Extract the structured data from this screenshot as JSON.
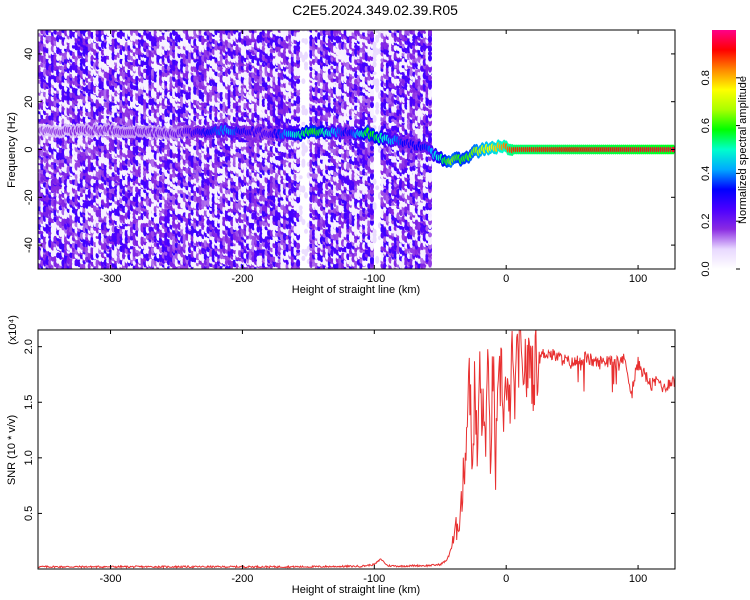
{
  "figure_title": "C2E5.2024.349.02.39.R05",
  "chart_data": [
    {
      "type": "heatmap",
      "name": "spectrogram",
      "title": "C2E5.2024.349.02.39.R05",
      "xlabel": "Height of straight line (km)",
      "ylabel": "Frequency (Hz)",
      "xlim": [
        -355,
        128
      ],
      "ylim": [
        -50,
        50
      ],
      "x_ticks": [
        -300,
        -200,
        -100,
        0,
        100
      ],
      "y_ticks": [
        -40,
        -20,
        0,
        20,
        40
      ],
      "colorbar": {
        "label": "Normalized spectral amplitude",
        "range": [
          0,
          1
        ],
        "ticks": [
          "0.0",
          "0.2",
          "0.4",
          "0.6",
          "0.8"
        ],
        "colors": [
          "#ffffff",
          "#e8d8ff",
          "#8a2be2",
          "#4b00ff",
          "#0000ff",
          "#00aaff",
          "#00ffcc",
          "#00ff00",
          "#aaff00",
          "#ffff00",
          "#ff8800",
          "#ff0000",
          "#ff0088"
        ]
      },
      "noise_region_x": [
        -355,
        -58
      ],
      "gaps_x": [
        [
          -158,
          -150
        ],
        [
          -102,
          -96
        ]
      ],
      "carrier_track": [
        {
          "x": -355,
          "y": 8,
          "a": 0.15
        },
        {
          "x": -300,
          "y": 8,
          "a": 0.18
        },
        {
          "x": -250,
          "y": 7,
          "a": 0.2
        },
        {
          "x": -210,
          "y": 8,
          "a": 0.42
        },
        {
          "x": -200,
          "y": 8,
          "a": 0.3
        },
        {
          "x": -180,
          "y": 7,
          "a": 0.25
        },
        {
          "x": -160,
          "y": 6,
          "a": 0.5
        },
        {
          "x": -153,
          "y": 7,
          "a": 0.55
        },
        {
          "x": -145,
          "y": 7,
          "a": 0.6
        },
        {
          "x": -120,
          "y": 7,
          "a": 0.3
        },
        {
          "x": -105,
          "y": 7,
          "a": 0.6
        },
        {
          "x": -98,
          "y": 5,
          "a": 0.55
        },
        {
          "x": -75,
          "y": 3,
          "a": 0.3
        },
        {
          "x": -60,
          "y": 0,
          "a": 0.35
        },
        {
          "x": -55,
          "y": -2,
          "a": 0.45
        },
        {
          "x": -48,
          "y": -4,
          "a": 0.55
        },
        {
          "x": -42,
          "y": -5,
          "a": 0.65
        },
        {
          "x": -36,
          "y": -4,
          "a": 0.6
        },
        {
          "x": -30,
          "y": -3,
          "a": 0.6
        },
        {
          "x": -24,
          "y": -1,
          "a": 0.65
        },
        {
          "x": -18,
          "y": 0,
          "a": 0.7
        },
        {
          "x": -12,
          "y": 1,
          "a": 0.75
        },
        {
          "x": -6,
          "y": 1,
          "a": 0.8
        },
        {
          "x": 0,
          "y": 1,
          "a": 0.85
        },
        {
          "x": 6,
          "y": 0,
          "a": 0.9
        },
        {
          "x": 128,
          "y": 0,
          "a": 0.95
        }
      ]
    },
    {
      "type": "line",
      "name": "snr",
      "xlabel": "Height of straight line (km)",
      "ylabel": "SNR (10 * v/v)",
      "y_multiplier": "(x10⁴)",
      "xlim": [
        -355,
        128
      ],
      "ylim": [
        0,
        2.15
      ],
      "x_ticks": [
        -300,
        -200,
        -100,
        0,
        100
      ],
      "y_ticks": [
        0.5,
        1.0,
        1.5,
        2.0
      ],
      "color": "#e83030",
      "series": [
        {
          "x": [
            -355,
            -300,
            -250,
            -200,
            -150,
            -110,
            -100,
            -95,
            -90,
            -80,
            -70,
            -60,
            -50,
            -45,
            -40,
            -36,
            -33,
            -30,
            -28,
            -26,
            -24,
            -22,
            -20,
            -18,
            -16,
            -14,
            -12,
            -10,
            -8,
            -6,
            -4,
            -2,
            0,
            2,
            4,
            6,
            8,
            10,
            12,
            14,
            16,
            18,
            20,
            25,
            30,
            40,
            50,
            60,
            70,
            80,
            90,
            95,
            100,
            105,
            110,
            115,
            120,
            125,
            128
          ],
          "y": [
            0.02,
            0.02,
            0.02,
            0.02,
            0.02,
            0.025,
            0.04,
            0.09,
            0.03,
            0.025,
            0.03,
            0.03,
            0.04,
            0.08,
            0.25,
            0.45,
            0.7,
            1.25,
            1.9,
            0.9,
            1.6,
            1.0,
            1.75,
            1.35,
            1.2,
            1.7,
            1.05,
            1.8,
            0.95,
            1.4,
            1.85,
            1.5,
            1.6,
            1.3,
            1.9,
            1.55,
            1.75,
            2.05,
            1.65,
            1.95,
            1.7,
            2.0,
            1.75,
            1.9,
            1.95,
            1.9,
            1.85,
            1.9,
            1.85,
            1.9,
            1.88,
            1.6,
            1.85,
            1.75,
            1.65,
            1.7,
            1.62,
            1.7,
            1.68
          ]
        }
      ]
    }
  ]
}
